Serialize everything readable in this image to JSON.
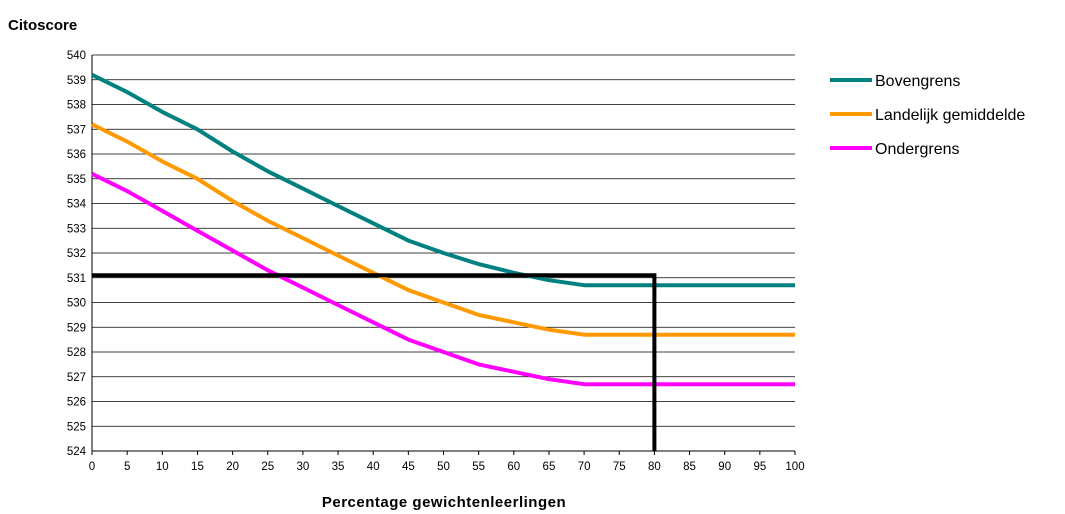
{
  "chart_data": {
    "type": "line",
    "ylabel": "Citoscore",
    "xlabel": "Percentage gewichtenleerlingen",
    "x": [
      0,
      5,
      10,
      15,
      20,
      25,
      30,
      35,
      40,
      45,
      50,
      55,
      60,
      65,
      70,
      75,
      80,
      85,
      90,
      95,
      100
    ],
    "x_ticks": [
      "0",
      "5",
      "10",
      "15",
      "20",
      "25",
      "30",
      "35",
      "40",
      "45",
      "50",
      "55",
      "60",
      "65",
      "70",
      "75",
      "80",
      "85",
      "90",
      "95",
      "100"
    ],
    "y_ticks": [
      "524",
      "525",
      "526",
      "527",
      "528",
      "529",
      "530",
      "531",
      "532",
      "533",
      "534",
      "535",
      "536",
      "537",
      "538",
      "539",
      "540"
    ],
    "xlim": [
      0,
      100
    ],
    "ylim": [
      524,
      540
    ],
    "grid": "horizontal",
    "legend_position": "right",
    "series": [
      {
        "name": "Bovengrens",
        "color": "#008080",
        "values": [
          539.2,
          538.5,
          537.7,
          537.0,
          536.1,
          535.3,
          534.6,
          533.9,
          533.2,
          532.5,
          532.0,
          531.55,
          531.2,
          530.9,
          530.7,
          530.7,
          530.7,
          530.7,
          530.7,
          530.7,
          530.7
        ]
      },
      {
        "name": "Landelijk gemiddelde",
        "color": "#FF9900",
        "values": [
          537.2,
          536.5,
          535.7,
          535.0,
          534.1,
          533.3,
          532.6,
          531.9,
          531.2,
          530.5,
          530.0,
          529.5,
          529.2,
          528.9,
          528.7,
          528.7,
          528.7,
          528.7,
          528.7,
          528.7,
          528.7
        ]
      },
      {
        "name": "Ondergrens",
        "color": "#FF00FF",
        "values": [
          535.2,
          534.5,
          533.7,
          532.9,
          532.1,
          531.3,
          530.6,
          529.9,
          529.2,
          528.5,
          528.0,
          527.5,
          527.2,
          526.9,
          526.7,
          526.7,
          526.7,
          526.7,
          526.7,
          526.7,
          526.7
        ]
      }
    ],
    "reference_lines": {
      "color": "#000000",
      "horizontal_y": 531.1,
      "vertical_x": 80
    }
  }
}
